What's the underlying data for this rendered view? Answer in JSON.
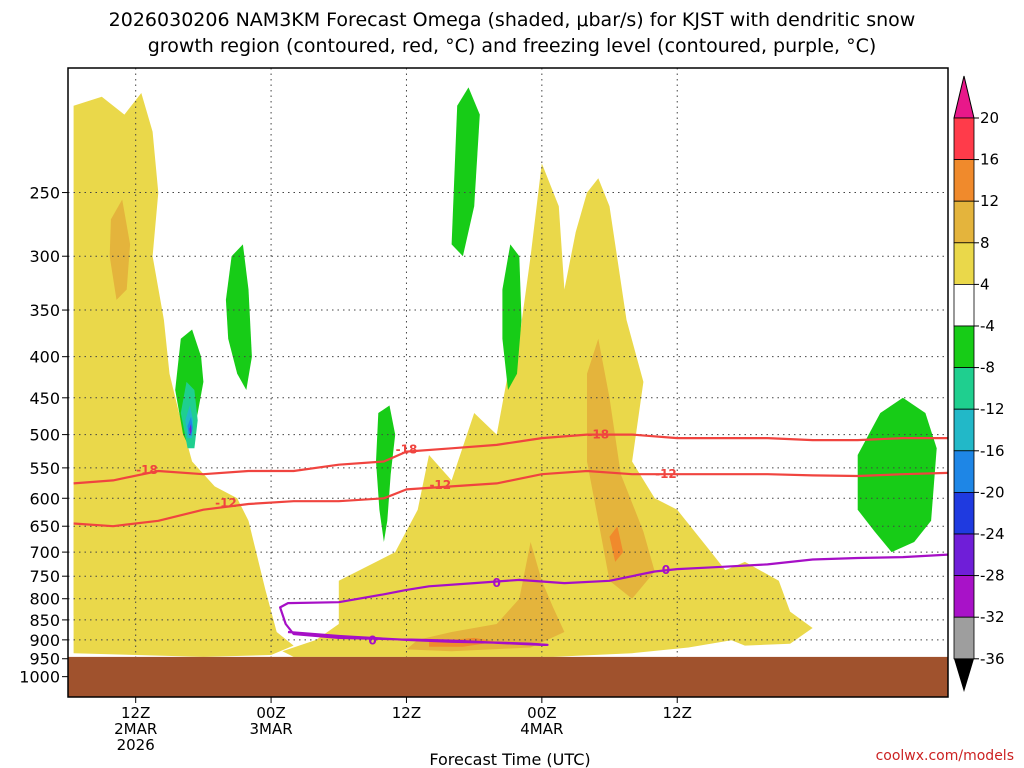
{
  "chart_data": {
    "type": "heatmap",
    "title_line1": "2026030206 NAM3KM Forecast Omega (shaded, μbar/s) for KJST with dendritic snow",
    "title_line2": "growth region (contoured, red, °C) and freezing level (contoured, purple, °C)",
    "xlabel": "Forecast Time (UTC)",
    "ylabel": "",
    "credit": "coolwx.com/models",
    "x_range_hours": [
      6,
      84
    ],
    "x_ticks": [
      {
        "hour": 12,
        "lines": [
          "12Z",
          "2MAR",
          "2026"
        ]
      },
      {
        "hour": 24,
        "lines": [
          "00Z",
          "3MAR"
        ]
      },
      {
        "hour": 36,
        "lines": [
          "12Z"
        ]
      },
      {
        "hour": 48,
        "lines": [
          "00Z",
          "4MAR"
        ]
      },
      {
        "hour": 60,
        "lines": [
          "12Z"
        ]
      }
    ],
    "y_range_hpa": [
      1060,
      175
    ],
    "y_scale": "log",
    "y_ticks": [
      250,
      300,
      350,
      400,
      450,
      500,
      550,
      600,
      650,
      700,
      750,
      800,
      850,
      900,
      950,
      1000
    ],
    "ground_top_hpa": 945,
    "colorbar": {
      "labels": [
        "20",
        "16",
        "12",
        "8",
        "4",
        "-4",
        "-8",
        "-12",
        "-16",
        "-20",
        "-24",
        "-28",
        "-32",
        "-36"
      ],
      "colors": [
        "#ff3b4a",
        "#f08a2c",
        "#e4b43c",
        "#ead84a",
        "#ffffff",
        "#17cc17",
        "#1fcf8f",
        "#22b8c8",
        "#1e86e6",
        "#1f3ae0",
        "#6f1ed8",
        "#a812c8",
        "#9e9e9e"
      ],
      "top_arrow_color": "#e8188a",
      "bottom_arrow_color": "#000000"
    },
    "omega_regions": [
      {
        "name": "upward-4-8-west",
        "value": 6,
        "points": [
          [
            6.5,
            195
          ],
          [
            9,
            190
          ],
          [
            11,
            200
          ],
          [
            12.5,
            188
          ],
          [
            13.5,
            210
          ],
          [
            14,
            250
          ],
          [
            13.5,
            300
          ],
          [
            14.5,
            360
          ],
          [
            15,
            420
          ],
          [
            16,
            480
          ],
          [
            17,
            540
          ],
          [
            19,
            580
          ],
          [
            21,
            600
          ],
          [
            22,
            640
          ],
          [
            23.5,
            780
          ],
          [
            24.5,
            880
          ],
          [
            26,
            915
          ],
          [
            24,
            940
          ],
          [
            18,
            945
          ],
          [
            12,
            940
          ],
          [
            6.5,
            935
          ]
        ]
      },
      {
        "name": "upward-4-8-west-lower",
        "value": 6,
        "points": [
          [
            6.5,
            600
          ],
          [
            10,
            610
          ],
          [
            12,
            640
          ],
          [
            13,
            700
          ],
          [
            12.5,
            760
          ],
          [
            11,
            800
          ],
          [
            9,
            830
          ],
          [
            6.5,
            840
          ]
        ]
      },
      {
        "name": "upward-8-12-west",
        "value": 10,
        "points": [
          [
            9.8,
            270
          ],
          [
            10.8,
            255
          ],
          [
            11.5,
            290
          ],
          [
            11.2,
            330
          ],
          [
            10.3,
            340
          ],
          [
            9.7,
            300
          ]
        ]
      },
      {
        "name": "upward-4-8-central",
        "value": 6,
        "points": [
          [
            30,
            760
          ],
          [
            35,
            700
          ],
          [
            37,
            620
          ],
          [
            38,
            530
          ],
          [
            40,
            570
          ],
          [
            42,
            470
          ],
          [
            44,
            500
          ],
          [
            45,
            420
          ],
          [
            46,
            380
          ],
          [
            47,
            300
          ],
          [
            48,
            230
          ],
          [
            49.5,
            260
          ],
          [
            50,
            330
          ],
          [
            51,
            280
          ],
          [
            52,
            250
          ],
          [
            53,
            240
          ],
          [
            54,
            260
          ],
          [
            55.5,
            360
          ],
          [
            57,
            430
          ],
          [
            56,
            540
          ],
          [
            58,
            600
          ],
          [
            60,
            620
          ],
          [
            63,
            700
          ],
          [
            65,
            760
          ],
          [
            67,
            820
          ],
          [
            65,
            900
          ],
          [
            61,
            920
          ],
          [
            56,
            935
          ],
          [
            49,
            945
          ],
          [
            40,
            945
          ],
          [
            32,
            945
          ],
          [
            26,
            945
          ],
          [
            25,
            930
          ],
          [
            28,
            900
          ],
          [
            30,
            860
          ]
        ]
      },
      {
        "name": "upward-8-12-central",
        "value": 10,
        "points": [
          [
            37,
            900
          ],
          [
            40,
            880
          ],
          [
            44,
            860
          ],
          [
            46,
            800
          ],
          [
            47,
            680
          ],
          [
            48,
            760
          ],
          [
            49,
            820
          ],
          [
            50,
            880
          ],
          [
            47,
            920
          ],
          [
            40,
            930
          ],
          [
            36,
            925
          ]
        ]
      },
      {
        "name": "upward-8-12-east",
        "value": 10,
        "points": [
          [
            52,
            420
          ],
          [
            53,
            380
          ],
          [
            54,
            450
          ],
          [
            55,
            560
          ],
          [
            57,
            660
          ],
          [
            58,
            740
          ],
          [
            56,
            800
          ],
          [
            54,
            760
          ],
          [
            53,
            640
          ],
          [
            52,
            540
          ]
        ]
      },
      {
        "name": "upward-12-16",
        "value": 14,
        "points": [
          [
            38,
            905
          ],
          [
            42,
            895
          ],
          [
            44,
            905
          ],
          [
            41,
            918
          ],
          [
            38,
            918
          ]
        ]
      },
      {
        "name": "upward-12-16-east",
        "value": 14,
        "points": [
          [
            54,
            670
          ],
          [
            54.7,
            650
          ],
          [
            55.2,
            700
          ],
          [
            54.5,
            720
          ]
        ]
      },
      {
        "name": "upward-4-8-far-east",
        "value": 6,
        "points": [
          [
            63,
            750
          ],
          [
            66,
            720
          ],
          [
            69,
            760
          ],
          [
            70,
            830
          ],
          [
            72,
            870
          ],
          [
            70,
            910
          ],
          [
            66,
            915
          ],
          [
            63,
            880
          ]
        ]
      },
      {
        "name": "downward-4-8-upper-center",
        "value": -6,
        "points": [
          [
            40.5,
            195
          ],
          [
            41.5,
            185
          ],
          [
            42.5,
            200
          ],
          [
            42,
            260
          ],
          [
            41,
            300
          ],
          [
            40,
            290
          ]
        ]
      },
      {
        "name": "downward-4-8-upper-right",
        "value": -6,
        "points": [
          [
            44.5,
            380
          ],
          [
            44.5,
            330
          ],
          [
            45.2,
            290
          ],
          [
            46,
            300
          ],
          [
            46.2,
            360
          ],
          [
            45.8,
            420
          ],
          [
            45,
            440
          ]
        ]
      },
      {
        "name": "downward-4-8-west-column",
        "value": -6,
        "points": [
          [
            15.5,
            440
          ],
          [
            16,
            380
          ],
          [
            17,
            370
          ],
          [
            17.8,
            400
          ],
          [
            18,
            430
          ],
          [
            17.5,
            470
          ],
          [
            16.8,
            520
          ],
          [
            16.2,
            500
          ]
        ]
      },
      {
        "name": "downward-4-8-center-left",
        "value": -6,
        "points": [
          [
            20,
            340
          ],
          [
            20.5,
            300
          ],
          [
            21.5,
            290
          ],
          [
            22,
            330
          ],
          [
            22.3,
            400
          ],
          [
            21.8,
            440
          ],
          [
            21,
            420
          ],
          [
            20.2,
            380
          ]
        ]
      },
      {
        "name": "downward-4-8-mid",
        "value": -6,
        "points": [
          [
            33.5,
            470
          ],
          [
            34.5,
            460
          ],
          [
            35,
            500
          ],
          [
            34.6,
            560
          ],
          [
            34.3,
            640
          ],
          [
            34,
            680
          ],
          [
            33.6,
            620
          ],
          [
            33.3,
            540
          ]
        ]
      },
      {
        "name": "downward-4-8-east",
        "value": -6,
        "points": [
          [
            76,
            530
          ],
          [
            78,
            470
          ],
          [
            80,
            450
          ],
          [
            82,
            470
          ],
          [
            83,
            520
          ],
          [
            82.5,
            640
          ],
          [
            81,
            680
          ],
          [
            79,
            700
          ],
          [
            77.5,
            660
          ],
          [
            76,
            620
          ]
        ]
      },
      {
        "name": "downward-8-12",
        "value": -10,
        "points": [
          [
            16,
            470
          ],
          [
            16.5,
            430
          ],
          [
            17.2,
            440
          ],
          [
            17.5,
            480
          ],
          [
            17.2,
            520
          ],
          [
            16.6,
            520
          ]
        ]
      },
      {
        "name": "downward-12-16",
        "value": -14,
        "points": [
          [
            16.4,
            480
          ],
          [
            16.8,
            460
          ],
          [
            17.1,
            480
          ],
          [
            17,
            505
          ],
          [
            16.6,
            505
          ]
        ]
      },
      {
        "name": "downward-16-20",
        "value": -18,
        "points": [
          [
            16.6,
            488
          ],
          [
            16.9,
            475
          ],
          [
            17.05,
            490
          ],
          [
            16.95,
            502
          ],
          [
            16.7,
            500
          ]
        ]
      },
      {
        "name": "downward-24-28",
        "value": -26,
        "points": [
          [
            16.75,
            492
          ],
          [
            16.9,
            485
          ],
          [
            16.95,
            495
          ],
          [
            16.85,
            500
          ]
        ]
      }
    ],
    "isotherm_contours": [
      {
        "label": "-18",
        "color": "#f0443f",
        "series": [
          [
            6.5,
            575
          ],
          [
            10,
            570
          ],
          [
            14,
            555
          ],
          [
            18,
            560
          ],
          [
            22,
            555
          ],
          [
            26,
            555
          ],
          [
            30,
            545
          ],
          [
            34,
            540
          ],
          [
            36,
            525
          ],
          [
            40,
            520
          ],
          [
            44,
            515
          ],
          [
            46,
            510
          ],
          [
            48,
            505
          ],
          [
            52,
            500
          ],
          [
            56,
            500
          ],
          [
            60,
            505
          ],
          [
            64,
            505
          ],
          [
            68,
            505
          ],
          [
            72,
            508
          ],
          [
            76,
            508
          ],
          [
            80,
            505
          ],
          [
            84,
            505
          ]
        ],
        "label_positions": [
          [
            13,
            553
          ],
          [
            36,
            522
          ],
          [
            53,
            500
          ]
        ]
      },
      {
        "label": "-12",
        "color": "#f0443f",
        "series": [
          [
            6.5,
            645
          ],
          [
            10,
            650
          ],
          [
            14,
            640
          ],
          [
            18,
            620
          ],
          [
            22,
            610
          ],
          [
            26,
            605
          ],
          [
            30,
            605
          ],
          [
            34,
            600
          ],
          [
            36,
            585
          ],
          [
            40,
            580
          ],
          [
            44,
            575
          ],
          [
            48,
            560
          ],
          [
            52,
            555
          ],
          [
            56,
            560
          ],
          [
            60,
            560
          ],
          [
            64,
            560
          ],
          [
            68,
            560
          ],
          [
            72,
            562
          ],
          [
            76,
            563
          ],
          [
            80,
            560
          ],
          [
            84,
            558
          ]
        ],
        "label_positions": [
          [
            20,
            608
          ],
          [
            39,
            578
          ],
          [
            59,
            560
          ]
        ]
      },
      {
        "label": "0",
        "color": "#a60fc6",
        "series": [
          [
            25.5,
            880
          ],
          [
            30,
            890
          ],
          [
            36,
            900
          ],
          [
            40,
            905
          ],
          [
            44,
            907
          ],
          [
            47,
            910
          ],
          [
            48.5,
            913
          ],
          [
            48,
            913
          ],
          [
            40,
            902
          ],
          [
            30,
            895
          ],
          [
            26,
            885
          ],
          [
            25.3,
            860
          ],
          [
            24.8,
            820
          ],
          [
            25.5,
            810
          ],
          [
            30,
            808
          ],
          [
            34,
            790
          ],
          [
            36,
            780
          ],
          [
            38,
            772
          ],
          [
            42,
            765
          ],
          [
            46,
            758
          ],
          [
            50,
            765
          ],
          [
            54,
            760
          ],
          [
            58,
            740
          ],
          [
            60,
            735
          ],
          [
            64,
            730
          ],
          [
            68,
            725
          ],
          [
            72,
            715
          ],
          [
            76,
            712
          ],
          [
            80,
            710
          ],
          [
            84,
            705
          ]
        ],
        "label_positions": [
          [
            33,
            902
          ],
          [
            44,
            765
          ],
          [
            59,
            737
          ]
        ]
      }
    ]
  }
}
